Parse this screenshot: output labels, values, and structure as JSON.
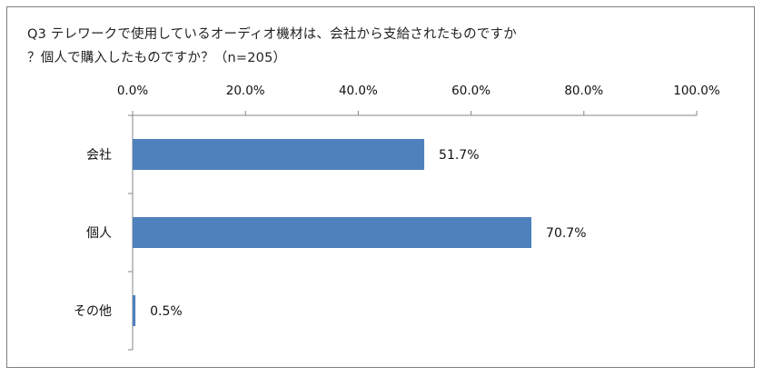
{
  "chart_data": {
    "type": "bar",
    "orientation": "horizontal",
    "title_lines": [
      "Q3 テレワークで使用しているオーディオ機材は、会社から支給されたものですか",
      "？個人で購入したものですか？（n=205）"
    ],
    "categories": [
      "会社",
      "個人",
      "その他"
    ],
    "values": [
      51.7,
      70.7,
      0.5
    ],
    "data_labels": [
      "51.7%",
      "70.7%",
      "0.5%"
    ],
    "x_ticks": [
      "0.0%",
      "20.0%",
      "40.0%",
      "60.0%",
      "80.0%",
      "100.0%"
    ],
    "xlim": [
      0,
      100
    ],
    "axis_position": "top",
    "grid": false,
    "legend": "none",
    "bar_color": "#4f81bd"
  }
}
